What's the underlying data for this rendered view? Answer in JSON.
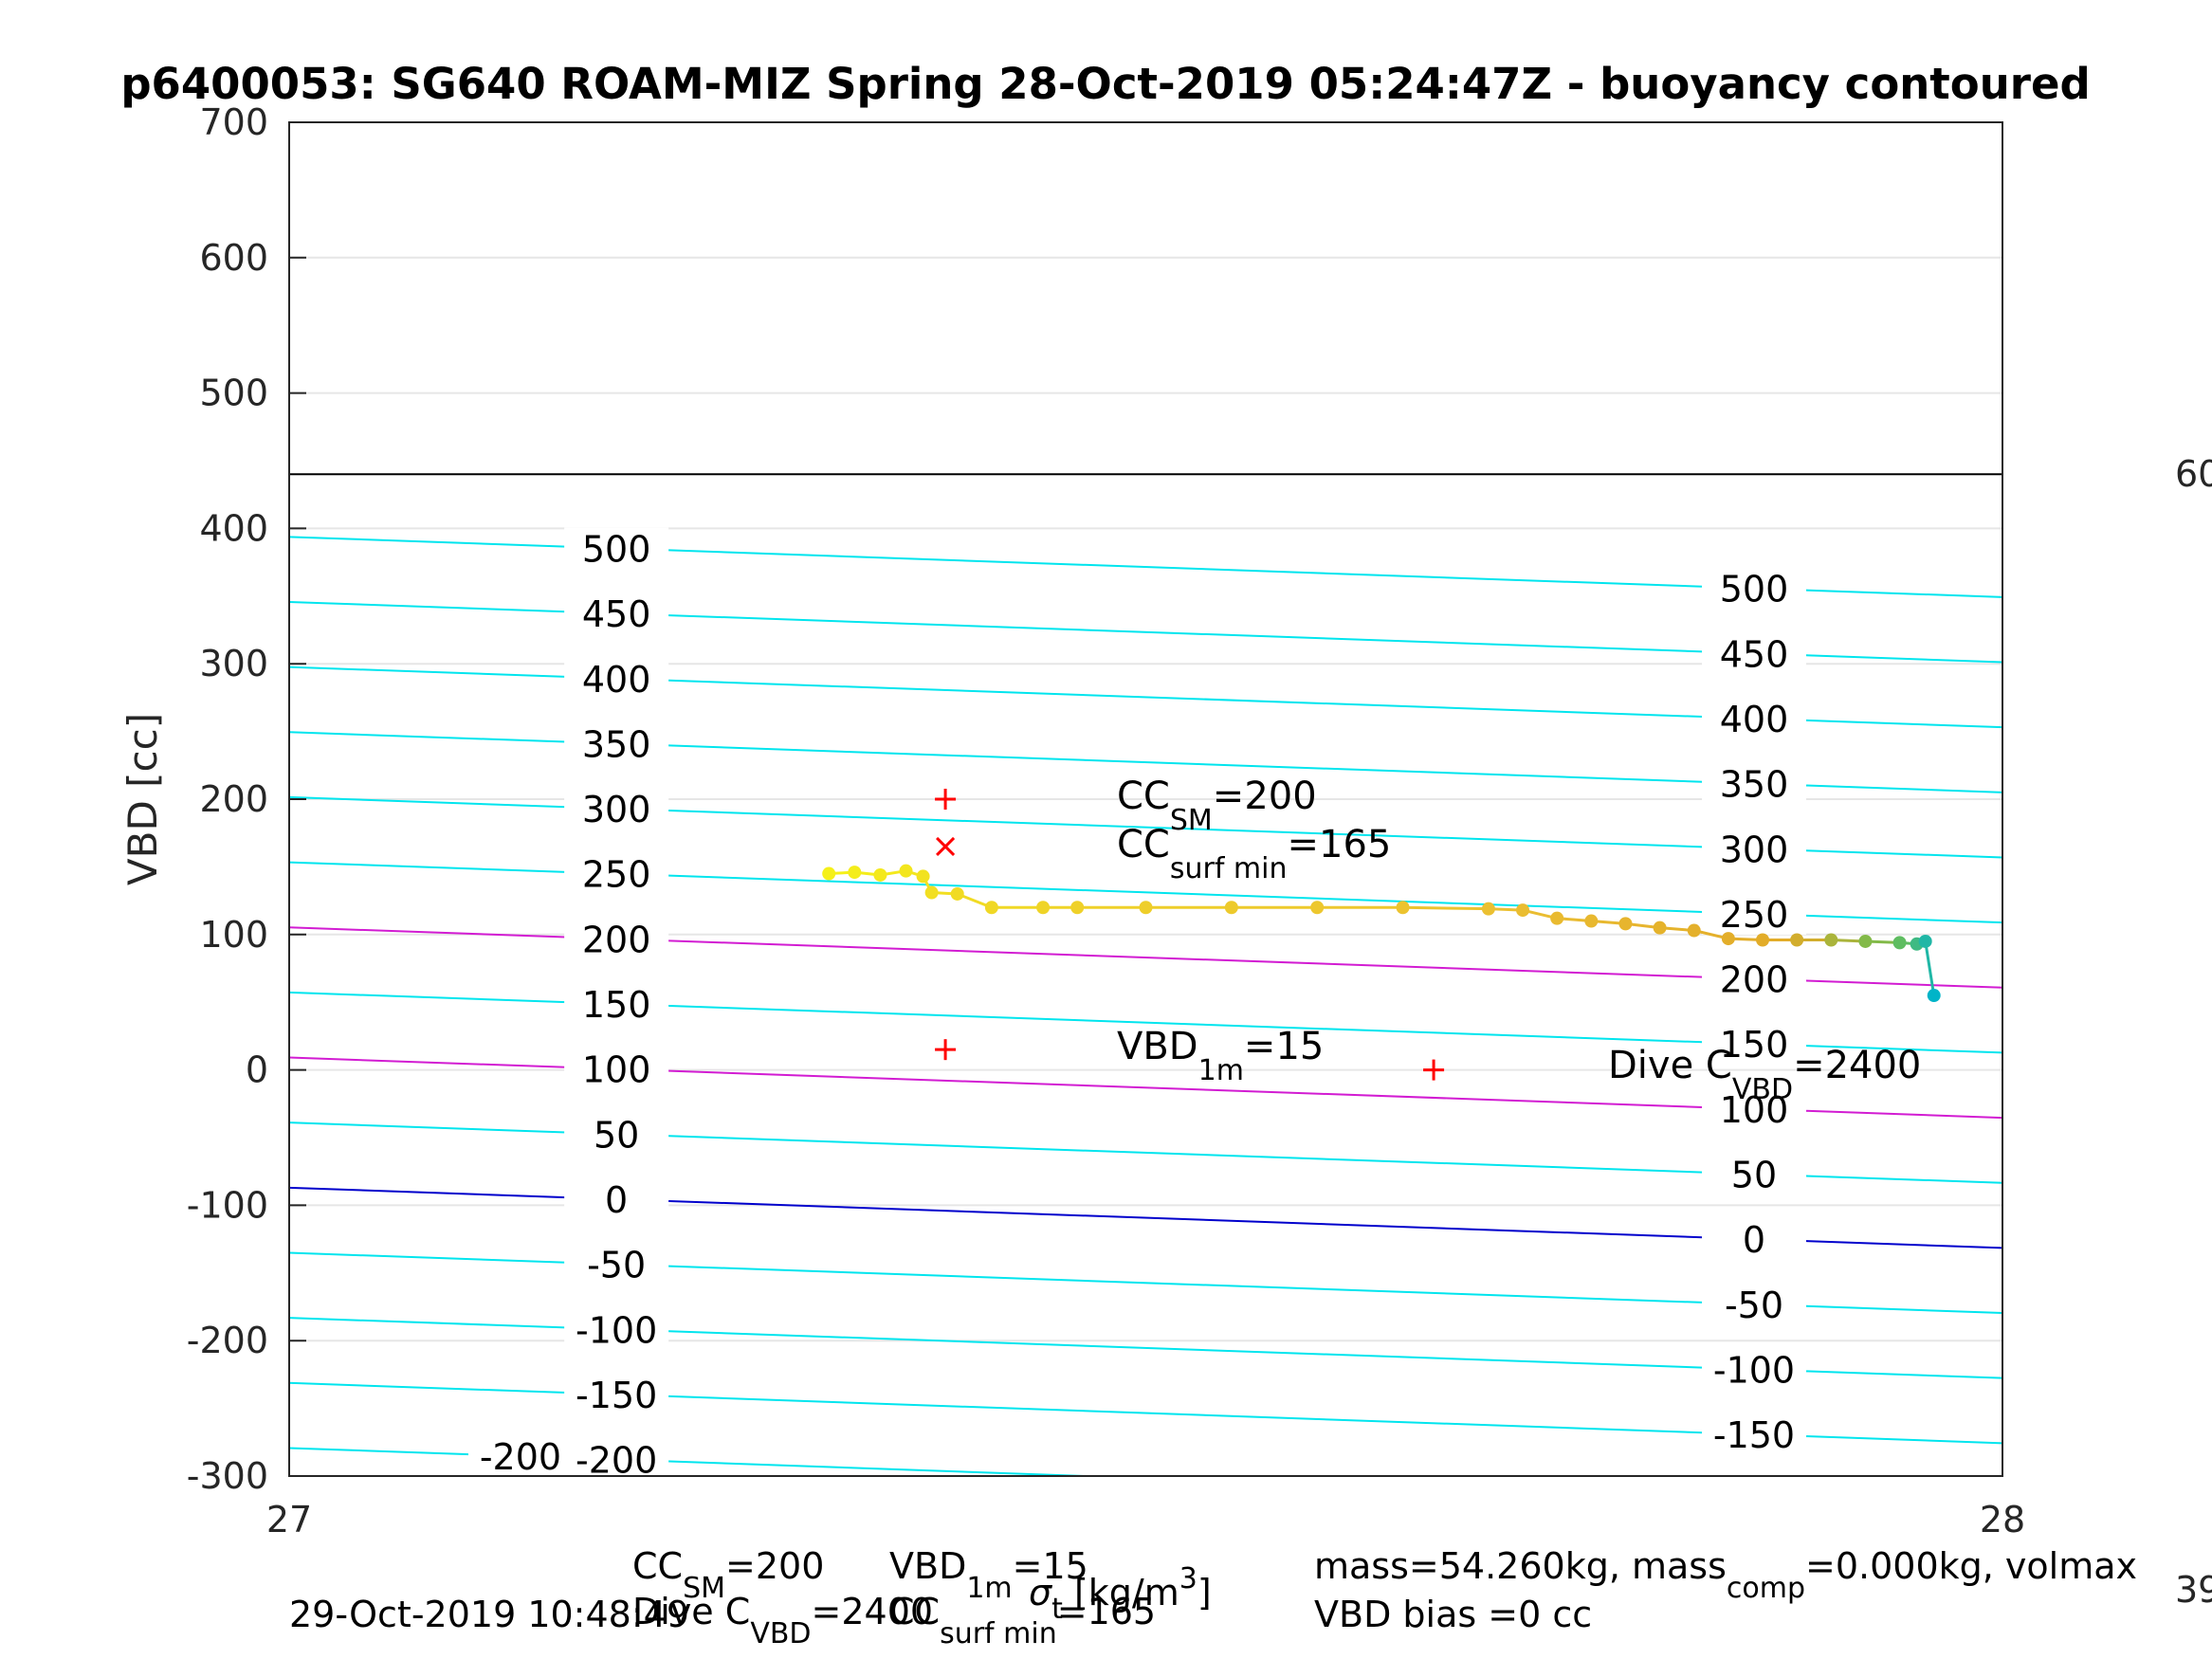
{
  "chart_data": {
    "type": "scatter",
    "title": "p6400053: SG640 ROAM-MIZ Spring 28-Oct-2019 05:24:47Z - buoyancy contoured",
    "ylabel": "VBD [cc]",
    "xlim": [
      27,
      28
    ],
    "ylim": [
      -300,
      700
    ],
    "x_ticks": [
      "27",
      "28"
    ],
    "y_ticks": [
      "-300",
      "-200",
      "-100",
      "0",
      "100",
      "200",
      "300",
      "400",
      "500",
      "600",
      "700"
    ],
    "grid": true,
    "right_axis_ticks": [
      "60",
      "39"
    ],
    "horizontal_line_y": 440,
    "contours": {
      "levels": [
        -200,
        -150,
        -100,
        -50,
        0,
        50,
        100,
        150,
        200,
        250,
        300,
        350,
        400,
        450,
        500
      ],
      "color": "#00e5ee",
      "zero_color": "#0000cc",
      "highlight_color": "#d21cd2",
      "highlight_levels": [
        100,
        200
      ],
      "vbd_at_zero_left": -87,
      "vbd_per_level": 0.9615,
      "slope_vbd_per_unit_x": -44.5,
      "left_label_x": 27.191,
      "right_label_x": 27.855
    },
    "series": [
      {
        "x": [
          27.315,
          27.33,
          27.345,
          27.36,
          27.37,
          27.375,
          27.39,
          27.41,
          27.44,
          27.46,
          27.5,
          27.55,
          27.6,
          27.65,
          27.7,
          27.72,
          27.74,
          27.76,
          27.78,
          27.8,
          27.82,
          27.84,
          27.86,
          27.88,
          27.9,
          27.92,
          27.94,
          27.95,
          27.955,
          27.96
        ],
        "y": [
          145,
          146,
          144,
          147,
          143,
          131,
          130,
          120,
          120,
          120,
          120,
          120,
          120,
          120,
          119,
          118,
          112,
          110,
          108,
          105,
          103,
          97,
          96,
          96,
          96,
          95,
          94,
          93,
          95,
          55
        ]
      }
    ],
    "markers": [
      {
        "x": 27.383,
        "y": 200,
        "symbol": "+",
        "color": "#ff0000"
      },
      {
        "x": 27.383,
        "y": 165,
        "symbol": "x",
        "color": "#ff0000"
      },
      {
        "x": 27.383,
        "y": 15,
        "symbol": "+",
        "color": "#ff0000"
      },
      {
        "x": 27.668,
        "y": 0,
        "symbol": "+",
        "color": "#ff0000"
      }
    ],
    "annotations": {
      "cc_sm": {
        "main": "CC",
        "sub": "SM",
        "tail": "=200"
      },
      "cc_surf": {
        "main": "CC",
        "sub": "surf min",
        "tail": "=165"
      },
      "vbd_1m": {
        "main": "VBD",
        "sub": "1m",
        "tail": "=15"
      },
      "dive_c": {
        "main": "Dive C",
        "sub": "VBD",
        "tail": "=2400"
      }
    },
    "footer": {
      "timestamp": "29-Oct-2019 10:48:49",
      "cc_sm": {
        "main": "CC",
        "sub": "SM",
        "tail": "=200"
      },
      "vbd_1m": {
        "main": "VBD",
        "sub": "1m",
        "tail": "=15"
      },
      "dive_c": {
        "main": "Dive C",
        "sub": "VBD",
        "tail": "=2400"
      },
      "cc_surf": {
        "main": "CC",
        "sub": "surf min",
        "tail": "=165"
      },
      "xlabel_sigma": "σ",
      "xlabel_sigma_sub": "t",
      "xlabel_units": " [kg/m",
      "xlabel_units_sup": "3",
      "xlabel_units_end": "]",
      "mass": {
        "main": "mass=54.260kg, mass",
        "sub": "comp",
        "tail": "=0.000kg, volmax"
      },
      "vbd_bias": "VBD bias =0 cc"
    }
  }
}
